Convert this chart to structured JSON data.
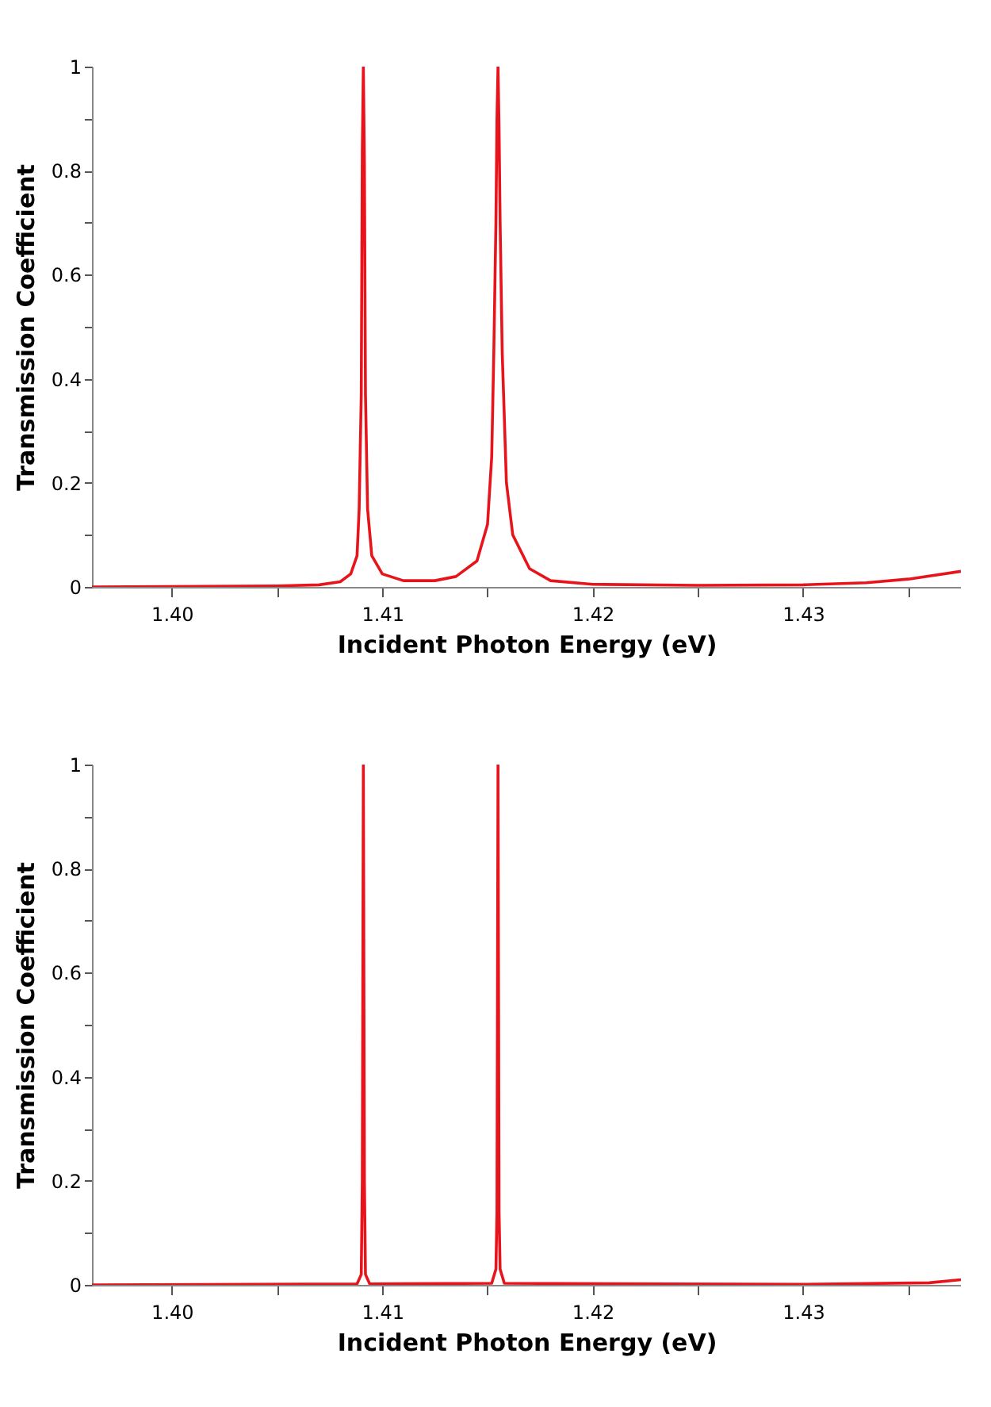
{
  "chart_data": [
    {
      "type": "line",
      "xlabel": "Incident Photon Energy (eV)",
      "ylabel": "Transmission Coefficient",
      "xlim": [
        1.3962,
        1.4375
      ],
      "ylim": [
        0,
        1
      ],
      "xticks": [
        {
          "value": 1.4,
          "label": "1.40"
        },
        {
          "value": 1.405,
          "label": null
        },
        {
          "value": 1.41,
          "label": "1.41"
        },
        {
          "value": 1.415,
          "label": null
        },
        {
          "value": 1.42,
          "label": "1.42"
        },
        {
          "value": 1.425,
          "label": null
        },
        {
          "value": 1.43,
          "label": "1.43"
        },
        {
          "value": 1.435,
          "label": null
        }
      ],
      "yticks": [
        0,
        {
          "value": 0.1,
          "label": null
        },
        0.2,
        {
          "value": 0.3,
          "label": null
        },
        0.4,
        {
          "value": 0.5,
          "label": null
        },
        0.6,
        {
          "value": 0.7,
          "label": null
        },
        0.8,
        {
          "value": 0.9,
          "label": null
        },
        1
      ],
      "grid": false,
      "x": [
        1.3962,
        1.405,
        1.407,
        1.408,
        1.4085,
        1.4088,
        1.4089,
        1.409,
        1.40905,
        1.4091,
        1.40915,
        1.4092,
        1.4093,
        1.4095,
        1.41,
        1.411,
        1.4125,
        1.4135,
        1.4145,
        1.415,
        1.4152,
        1.4153,
        1.4154,
        1.41545,
        1.4155,
        1.41555,
        1.4156,
        1.4157,
        1.4159,
        1.4162,
        1.417,
        1.418,
        1.42,
        1.425,
        1.43,
        1.433,
        1.435,
        1.4375
      ],
      "series": [
        {
          "color": "#e8141c",
          "values": [
            0,
            0.002,
            0.004,
            0.01,
            0.025,
            0.06,
            0.15,
            0.37,
            0.84,
            1.0,
            0.81,
            0.37,
            0.15,
            0.06,
            0.025,
            0.012,
            0.012,
            0.02,
            0.05,
            0.12,
            0.25,
            0.45,
            0.7,
            0.9,
            1.0,
            0.88,
            0.7,
            0.45,
            0.2,
            0.1,
            0.035,
            0.012,
            0.005,
            0.003,
            0.004,
            0.008,
            0.015,
            0.03
          ]
        }
      ]
    },
    {
      "type": "line",
      "xlabel": "Incident Photon Energy (eV)",
      "ylabel": "Transmission Coefficient",
      "xlim": [
        1.3962,
        1.4375
      ],
      "ylim": [
        0,
        1
      ],
      "xticks": [
        {
          "value": 1.4,
          "label": "1.40"
        },
        {
          "value": 1.405,
          "label": null
        },
        {
          "value": 1.41,
          "label": "1.41"
        },
        {
          "value": 1.415,
          "label": null
        },
        {
          "value": 1.42,
          "label": "1.42"
        },
        {
          "value": 1.425,
          "label": null
        },
        {
          "value": 1.43,
          "label": "1.43"
        },
        {
          "value": 1.435,
          "label": null
        }
      ],
      "yticks": [
        0,
        {
          "value": 0.1,
          "label": null
        },
        0.2,
        {
          "value": 0.3,
          "label": null
        },
        0.4,
        {
          "value": 0.5,
          "label": null
        },
        0.6,
        {
          "value": 0.7,
          "label": null
        },
        0.8,
        {
          "value": 0.9,
          "label": null
        },
        1
      ],
      "grid": false,
      "x": [
        1.3962,
        1.4088,
        1.409,
        1.40905,
        1.4091,
        1.40915,
        1.4092,
        1.4094,
        1.4152,
        1.4154,
        1.41545,
        1.4155,
        1.41555,
        1.4156,
        1.4158,
        1.43,
        1.436,
        1.4375
      ],
      "series": [
        {
          "color": "#e8141c",
          "values": [
            0,
            0.002,
            0.02,
            0.2,
            1.0,
            0.2,
            0.02,
            0.002,
            0.003,
            0.03,
            0.14,
            1.0,
            0.14,
            0.03,
            0.003,
            0.001,
            0.004,
            0.01
          ]
        }
      ]
    }
  ]
}
